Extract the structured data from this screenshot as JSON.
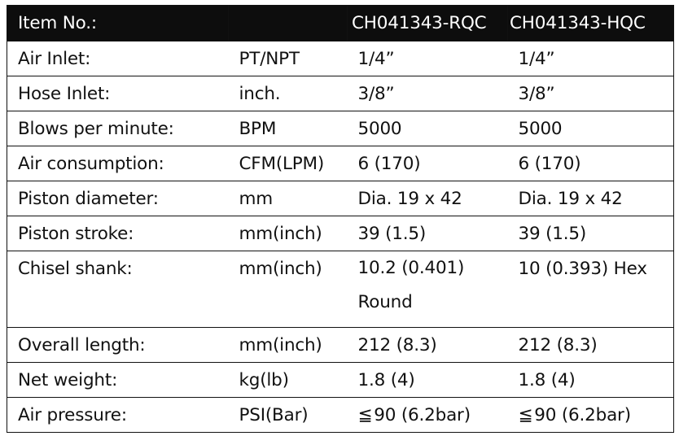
{
  "header": {
    "item_label": "Item No.:",
    "unit_label": "",
    "model_a": "CH041343-RQC",
    "model_b": "CH041343-HQC"
  },
  "rows": [
    {
      "desc": "Air Inlet:",
      "unit": "PT/NPT",
      "a": "1/4”",
      "b": "1/4”"
    },
    {
      "desc": "Hose Inlet:",
      "unit": "inch.",
      "a": "3/8”",
      "b": "3/8”"
    },
    {
      "desc": "Blows per minute:",
      "unit": "BPM",
      "a": "5000",
      "b": "5000"
    },
    {
      "desc": "Air consumption:",
      "unit": "CFM(LPM)",
      "a": "6 (170)",
      "b": "6 (170)"
    },
    {
      "desc": "Piston diameter:",
      "unit": "mm",
      "a": "Dia. 19 x 42",
      "b": "Dia. 19 x 42"
    },
    {
      "desc": "Piston stroke:",
      "unit": "mm(inch)",
      "a": "39 (1.5)",
      "b": "39 (1.5)"
    },
    {
      "desc": "Chisel shank:",
      "unit": "mm(inch)",
      "a": "10.2 (0.401)",
      "a2": "Round",
      "b": "10 (0.393) Hex"
    },
    {
      "desc": "Overall length:",
      "unit": "mm(inch)",
      "a": "212 (8.3)",
      "b": "212 (8.3)"
    },
    {
      "desc": "Net weight:",
      "unit": "kg(lb)",
      "a": "1.8 (4)",
      "b": "1.8 (4)"
    },
    {
      "desc": "Air pressure:",
      "unit": "PSI(Bar)",
      "a": "≦ 90 (6.2bar)",
      "b": "≦ 90 (6.2bar)"
    }
  ]
}
